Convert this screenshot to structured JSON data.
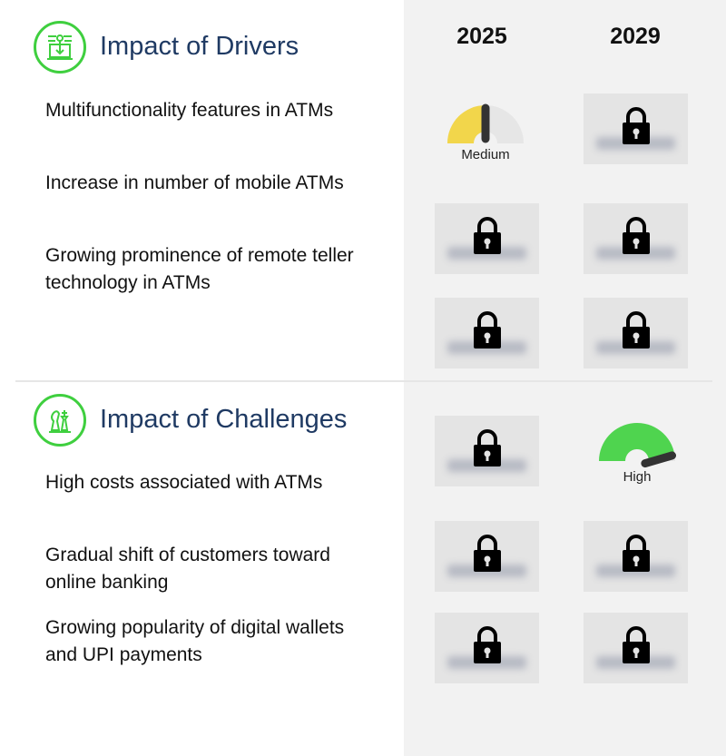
{
  "years": [
    "2025",
    "2029"
  ],
  "drivers": {
    "title": "Impact of Drivers",
    "icon": "laptop-circuit-icon",
    "items": [
      "Multifunctionality features in ATMs",
      "Increase in number of mobile ATMs",
      "Growing prominence of remote teller technology in ATMs"
    ]
  },
  "challenges": {
    "title": "Impact of Challenges",
    "icon": "chess-pieces-icon",
    "items": [
      "High costs associated with ATMs",
      "Gradual shift of customers toward online banking",
      "Growing popularity of digital wallets and UPI payments"
    ]
  },
  "gauges": {
    "medium": {
      "label": "Medium",
      "level": 0.5,
      "color": "#f2d64b"
    },
    "high": {
      "label": "High",
      "level": 0.95,
      "color": "#4fd44f"
    }
  },
  "colors": {
    "accent_green": "#3fcf3f",
    "title_blue": "#1f3a63",
    "panel_bg": "#f2f2f2"
  }
}
